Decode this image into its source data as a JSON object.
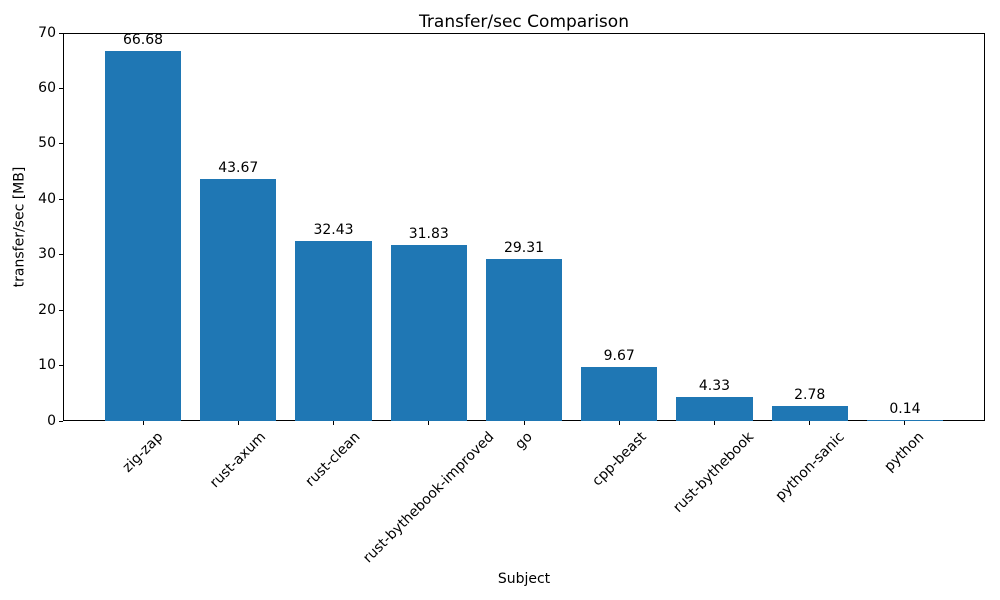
{
  "chart_data": {
    "type": "bar",
    "title": "Transfer/sec Comparison",
    "xlabel": "Subject",
    "ylabel": "transfer/sec [MB]",
    "categories": [
      "zig-zap",
      "rust-axum",
      "rust-clean",
      "rust-bythebook-improved",
      "go",
      "cpp-beast",
      "rust-bythebook",
      "python-sanic",
      "python"
    ],
    "values": [
      66.68,
      43.67,
      32.43,
      31.83,
      29.31,
      9.67,
      4.33,
      2.78,
      0.14
    ],
    "bar_labels": [
      "66.68",
      "43.67",
      "32.43",
      "31.83",
      "29.31",
      "9.67",
      "4.33",
      "2.78",
      "0.14"
    ],
    "yticks": [
      0,
      10,
      20,
      30,
      40,
      50,
      60,
      70
    ],
    "ylim": [
      0,
      70
    ],
    "bar_width_fraction": 0.8,
    "grid": false,
    "legend": false,
    "bar_color": "#1f77b4",
    "text_color": "#000000",
    "background_color": "#ffffff"
  }
}
